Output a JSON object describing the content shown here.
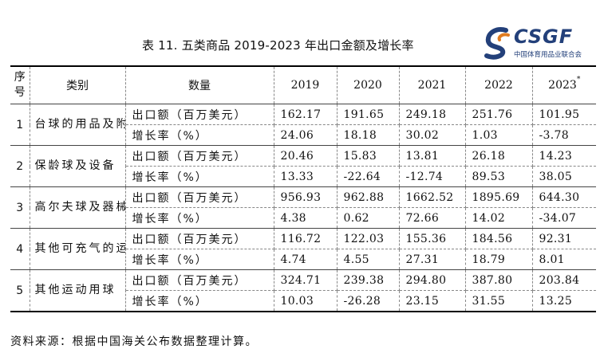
{
  "title": "表 11.  五类商品 2019-2023 年出口金额及增长率",
  "logo": {
    "brand": "CSGF",
    "subtitle": "中国体育用品业联合会",
    "brand_color": "#23407a",
    "accent_color": "#e07b1f"
  },
  "table": {
    "headers": {
      "seq": "序号",
      "category": "类别",
      "metric": "数量",
      "years": [
        "2019",
        "2020",
        "2021",
        "2022",
        "2023"
      ],
      "year_2023_mark": "*"
    },
    "groups": [
      {
        "seq": "1",
        "category": "台球的用品及附件",
        "rows": [
          {
            "metric": "出口额（百万美元）",
            "values": [
              "162.17",
              "191.65",
              "249.18",
              "251.76",
              "101.95"
            ]
          },
          {
            "metric": "增长率（%）",
            "values": [
              "24.06",
              "18.18",
              "30.02",
              "1.03",
              "-3.78"
            ]
          }
        ]
      },
      {
        "seq": "2",
        "category": "保龄球及设备",
        "rows": [
          {
            "metric": "出口额（百万美元）",
            "values": [
              "20.46",
              "15.83",
              "13.81",
              "26.18",
              "14.23"
            ]
          },
          {
            "metric": "增长率（%）",
            "values": [
              "13.33",
              "-22.64",
              "-12.74",
              "89.53",
              "38.05"
            ]
          }
        ]
      },
      {
        "seq": "3",
        "category": "高尔夫球及器械",
        "rows": [
          {
            "metric": "出口额（百万美元）",
            "values": [
              "956.93",
              "962.88",
              "1662.52",
              "1895.69",
              "644.30"
            ]
          },
          {
            "metric": "增长率（%）",
            "values": [
              "4.38",
              "0.62",
              "72.66",
              "14.02",
              "-34.07"
            ]
          }
        ]
      },
      {
        "seq": "4",
        "category": "其他可充气的运动用球",
        "rows": [
          {
            "metric": "出口额（百万美元）",
            "values": [
              "116.72",
              "122.03",
              "155.36",
              "184.56",
              "92.31"
            ]
          },
          {
            "metric": "增长率（%）",
            "values": [
              "4.74",
              "4.55",
              "27.31",
              "18.79",
              "8.01"
            ]
          }
        ]
      },
      {
        "seq": "5",
        "category": "其他运动用球",
        "rows": [
          {
            "metric": "出口额（百万美元）",
            "values": [
              "324.71",
              "239.38",
              "294.80",
              "387.80",
              "203.84"
            ]
          },
          {
            "metric": "增长率（%）",
            "values": [
              "10.03",
              "-26.28",
              "23.15",
              "31.55",
              "13.25"
            ]
          }
        ]
      }
    ]
  },
  "source": "资料来源：根据中国海关公布数据整理计算。"
}
